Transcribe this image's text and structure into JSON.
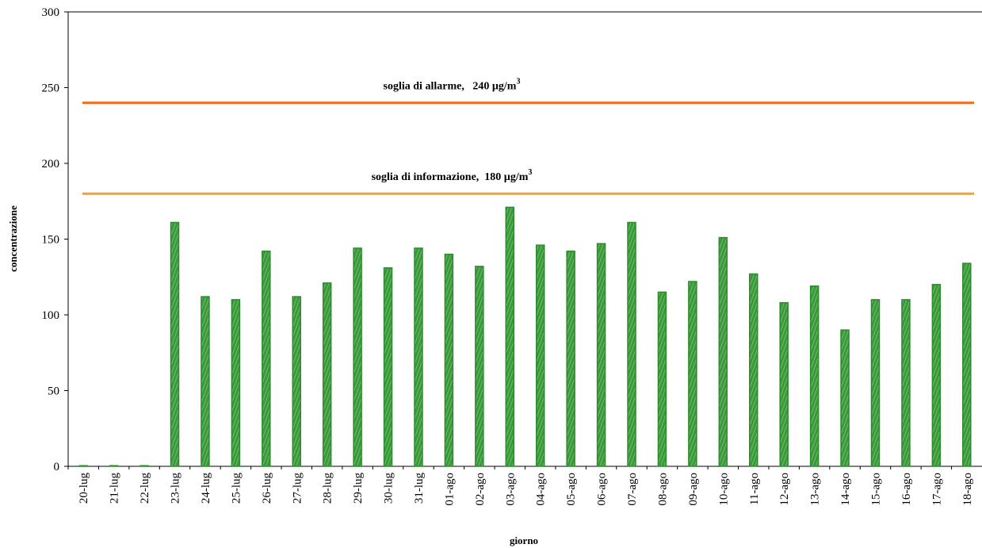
{
  "chart_data": {
    "type": "bar",
    "xlabel": "giorno",
    "ylabel": "concentrazione",
    "ylim": [
      0,
      300
    ],
    "yticks": [
      "0",
      "50",
      "100",
      "150",
      "200",
      "250",
      "300"
    ],
    "categories": [
      "20-lug",
      "21-lug",
      "22-lug",
      "23-lug",
      "24-lug",
      "25-lug",
      "26-lug",
      "27-lug",
      "28-lug",
      "29-lug",
      "30-lug",
      "31-lug",
      "01-ago",
      "02-ago",
      "03-ago",
      "04-ago",
      "05-ago",
      "06-ago",
      "07-ago",
      "08-ago",
      "09-ago",
      "10-ago",
      "11-ago",
      "12-ago",
      "13-ago",
      "14-ago",
      "15-ago",
      "16-ago",
      "17-ago",
      "18-ago"
    ],
    "values": [
      0,
      0,
      0,
      161,
      112,
      110,
      142,
      112,
      121,
      144,
      131,
      144,
      140,
      132,
      171,
      146,
      142,
      147,
      161,
      115,
      122,
      151,
      127,
      108,
      119,
      90,
      110,
      110,
      120,
      134
    ],
    "bar_color": "#2e8b2e",
    "thresholds": [
      {
        "value": 240,
        "label": "soglia di allarme,   240 µg/m",
        "sup": "3",
        "color": "#f07020"
      },
      {
        "value": 180,
        "label": "soglia di informazione,  180 µg/m",
        "sup": "3",
        "color": "#f5a030"
      }
    ],
    "grid": false,
    "legend": "none"
  }
}
